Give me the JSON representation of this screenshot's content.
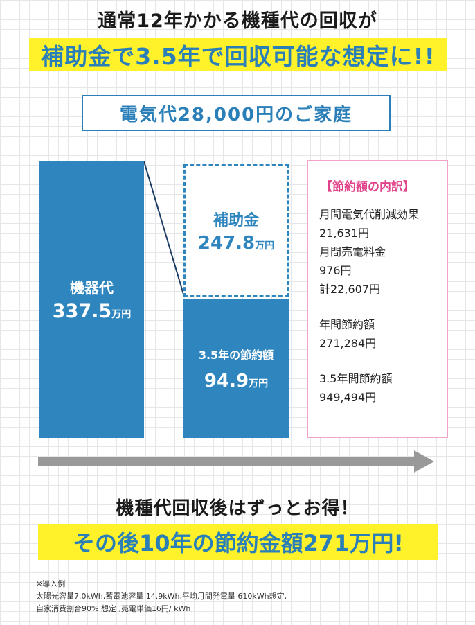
{
  "headline": {
    "line1": "通常12年かかる機種代の回収が",
    "line2": "補助金で3.5年で回収可能な想定に!!"
  },
  "household_label": "電気代28,000円のご家庭",
  "bars": {
    "device": {
      "title": "機器代",
      "value": "337.5",
      "unit": "万円"
    },
    "subsidy": {
      "title": "補助金",
      "value": "247.8",
      "unit": "万円"
    },
    "saving": {
      "title": "3.5年の節約額",
      "value": "94.9",
      "unit": "万円"
    }
  },
  "breakdown": {
    "title": "【節約額の内訳】",
    "monthly_reduction_label": "月間電気代削減効果",
    "monthly_reduction_value": "21,631円",
    "monthly_sales_label": "月間売電料金",
    "monthly_sales_value": "976円",
    "monthly_total": "計22,607円",
    "annual_label": "年間節約額",
    "annual_value": "271,284円",
    "period_label": "3.5年間節約額",
    "period_value": "949,494円"
  },
  "headline_bottom": {
    "line1": "機種代回収後はずっとお得！",
    "line2": "その後10年の節約金額271万円!"
  },
  "footnote": {
    "title": "※導入例",
    "line1": "太陽光容量7.0kWh,蓄電池容量 14.9kWh,平均月間発電量 610kWh想定,",
    "line2": "自家消費割合90% 想定 ,売電単価16円/ kWh"
  },
  "colors": {
    "accent_blue": "#2f86bf",
    "highlight_yellow": "#fff22b",
    "breakdown_pink": "#e0438a",
    "arrow_gray": "#999999"
  },
  "icons": {
    "timeline": "right-arrow-icon"
  }
}
